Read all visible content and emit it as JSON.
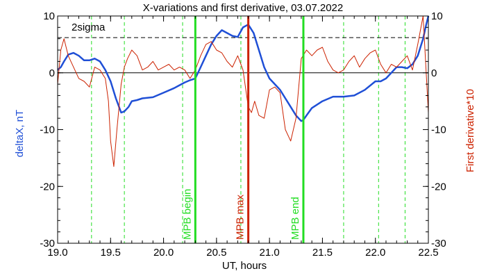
{
  "chart_data": {
    "type": "line",
    "title": "X-variations and first derivative, 03.07.2022",
    "xlabel": "UT, hours",
    "ylabel_left": "deltaX, nT",
    "ylabel_right": "First derivative*10",
    "xlim": [
      19.0,
      22.5
    ],
    "ylim": [
      -30,
      10
    ],
    "xticks": [
      "19.0",
      "19.5",
      "20.0",
      "20.5",
      "21.0",
      "21.5",
      "22.0",
      "22.5"
    ],
    "yticks": [
      "10",
      "0",
      "-10",
      "-20",
      "-30"
    ],
    "grid": false,
    "threshold": {
      "label": "2sigma",
      "value": 6.2
    },
    "zero_line": 0,
    "dashed_markers": [
      19.32,
      19.63,
      20.18,
      20.73,
      21.7,
      22.03,
      22.28
    ],
    "event_lines": [
      {
        "label": "MPB begin",
        "x": 20.3,
        "color": "#22dd22"
      },
      {
        "label": "MPB max",
        "x": 20.8,
        "color": "#cc2200"
      },
      {
        "label": "MPB end",
        "x": 21.32,
        "color": "#22dd22"
      }
    ],
    "series": [
      {
        "name": "deltaX, nT",
        "color": "#1f4fd6",
        "x": [
          19.0,
          19.03,
          19.06,
          19.1,
          19.15,
          19.2,
          19.25,
          19.3,
          19.35,
          19.4,
          19.45,
          19.5,
          19.55,
          19.6,
          19.63,
          19.67,
          19.7,
          19.75,
          19.8,
          19.9,
          20.0,
          20.1,
          20.2,
          20.25,
          20.3,
          20.35,
          20.4,
          20.45,
          20.5,
          20.55,
          20.6,
          20.65,
          20.7,
          20.75,
          20.8,
          20.85,
          20.9,
          20.95,
          21.0,
          21.05,
          21.1,
          21.15,
          21.2,
          21.25,
          21.3,
          21.32,
          21.35,
          21.4,
          21.5,
          21.6,
          21.7,
          21.8,
          21.9,
          22.0,
          22.05,
          22.1,
          22.15,
          22.2,
          22.25,
          22.3,
          22.35,
          22.4,
          22.45,
          22.48,
          22.5
        ],
        "y": [
          0.5,
          1.0,
          2.0,
          3.2,
          3.5,
          3.0,
          2.2,
          2.2,
          2.5,
          2.0,
          0.5,
          -1.5,
          -4.5,
          -7.0,
          -6.8,
          -6.0,
          -5.0,
          -4.8,
          -4.5,
          -4.3,
          -3.5,
          -2.7,
          -1.7,
          -1.3,
          -1.0,
          1.0,
          3.0,
          5.0,
          6.5,
          7.5,
          7.0,
          6.5,
          6.3,
          8.0,
          8.5,
          7.0,
          4.0,
          1.0,
          -1.0,
          -2.0,
          -3.0,
          -4.5,
          -6.0,
          -7.5,
          -8.5,
          -8.3,
          -7.5,
          -6.2,
          -5.0,
          -4.2,
          -4.2,
          -4.0,
          -3.0,
          -1.5,
          -1.5,
          -1.0,
          0.0,
          1.0,
          1.0,
          0.8,
          1.5,
          3.0,
          6.0,
          8.5,
          10.0
        ]
      },
      {
        "name": "First derivative*10",
        "color": "#cc2200",
        "x": [
          19.0,
          19.03,
          19.06,
          19.1,
          19.15,
          19.2,
          19.25,
          19.3,
          19.35,
          19.4,
          19.45,
          19.48,
          19.5,
          19.53,
          19.56,
          19.6,
          19.63,
          19.66,
          19.7,
          19.75,
          19.8,
          19.85,
          19.9,
          19.95,
          20.0,
          20.05,
          20.1,
          20.15,
          20.2,
          20.25,
          20.3,
          20.35,
          20.4,
          20.45,
          20.5,
          20.55,
          20.6,
          20.65,
          20.7,
          20.75,
          20.8,
          20.83,
          20.86,
          20.9,
          20.95,
          21.0,
          21.05,
          21.1,
          21.15,
          21.2,
          21.25,
          21.3,
          21.35,
          21.4,
          21.45,
          21.5,
          21.55,
          21.6,
          21.65,
          21.7,
          21.75,
          21.8,
          21.85,
          21.9,
          21.95,
          22.0,
          22.05,
          22.1,
          22.15,
          22.2,
          22.25,
          22.3,
          22.35,
          22.4,
          22.45,
          22.5
        ],
        "y": [
          -2.0,
          4.0,
          6.0,
          3.0,
          1.0,
          -1.0,
          -1.5,
          -2.5,
          1.0,
          0.5,
          -1.0,
          -5.0,
          -12.0,
          -16.5,
          -10.0,
          -2.0,
          1.0,
          2.5,
          4.0,
          3.0,
          0.5,
          1.0,
          2.0,
          0.5,
          1.0,
          1.5,
          0.5,
          1.0,
          0.5,
          -1.0,
          0.5,
          3.0,
          5.0,
          5.5,
          4.0,
          3.5,
          2.0,
          1.0,
          3.0,
          0.5,
          -6.0,
          -7.0,
          -5.0,
          -7.5,
          -8.0,
          -3.0,
          -2.5,
          -3.5,
          -10.0,
          -12.0,
          -8.0,
          2.5,
          4.0,
          3.0,
          4.0,
          4.5,
          2.0,
          0.5,
          0.0,
          0.5,
          2.0,
          3.0,
          1.0,
          2.5,
          3.5,
          4.0,
          1.5,
          0.0,
          1.5,
          1.0,
          2.0,
          3.0,
          0.5,
          5.0,
          10.0,
          -7.0
        ]
      }
    ]
  }
}
